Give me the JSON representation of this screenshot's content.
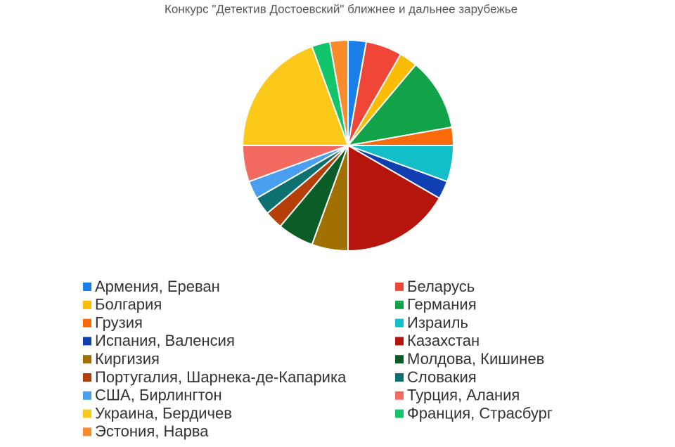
{
  "chart_data": {
    "type": "pie",
    "title": "Конкурс \"Детектив Достоевский\" ближнее и дальнее зарубежье",
    "categories": [
      "Армения, Ереван",
      "Беларусь",
      "Болгария",
      "Германия",
      "Грузия",
      "Израиль",
      "Испания, Валенсия",
      "Казахстан",
      "Киргизия",
      "Молдова, Кишинев",
      "Португалия, Шарнека-де-Капарика",
      "Словакия",
      "США, Бирлингтон",
      "Турция, Алания",
      "Украина, Бердичев",
      "Франция, Страсбург",
      "Эстония, Нарва"
    ],
    "values": [
      1,
      2,
      1,
      4,
      1,
      2,
      1,
      6,
      2,
      2,
      1,
      1,
      1,
      2,
      7,
      1,
      1
    ],
    "colors": [
      "#1a7fe8",
      "#f04638",
      "#fbbc05",
      "#12a34a",
      "#fa6a0a",
      "#12bfc9",
      "#0f3fb0",
      "#b5150d",
      "#a07000",
      "#0b5c26",
      "#b53f08",
      "#0e7170",
      "#4a9ef0",
      "#f36a60",
      "#fcc819",
      "#12c46a",
      "#fa8a2a"
    ]
  }
}
